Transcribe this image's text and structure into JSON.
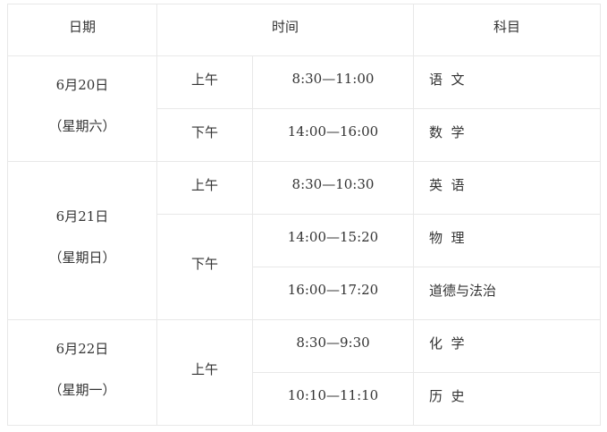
{
  "headers": {
    "date": "日期",
    "time": "时间",
    "subject": "科目"
  },
  "days": [
    {
      "date": "6月20日",
      "weekday": "（星期六）",
      "periods": [
        {
          "period": "上午",
          "sessions": [
            {
              "time": "8:30—11:00",
              "subject": "语  文"
            }
          ]
        },
        {
          "period": "下午",
          "sessions": [
            {
              "time": "14:00—16:00",
              "subject": "数  学"
            }
          ]
        }
      ]
    },
    {
      "date": "6月21日",
      "weekday": "（星期日）",
      "periods": [
        {
          "period": "上午",
          "sessions": [
            {
              "time": "8:30—10:30",
              "subject": "英  语"
            }
          ]
        },
        {
          "period": "下午",
          "sessions": [
            {
              "time": "14:00—15:20",
              "subject": "物  理"
            },
            {
              "time": "16:00—17:20",
              "subject": "道德与法治"
            }
          ]
        }
      ]
    },
    {
      "date": "6月22日",
      "weekday": "（星期一）",
      "periods": [
        {
          "period": "上午",
          "sessions": [
            {
              "time": "8:30—9:30",
              "subject": "化  学"
            },
            {
              "time": "10:10—11:10",
              "subject": "历  史"
            }
          ]
        }
      ]
    }
  ]
}
